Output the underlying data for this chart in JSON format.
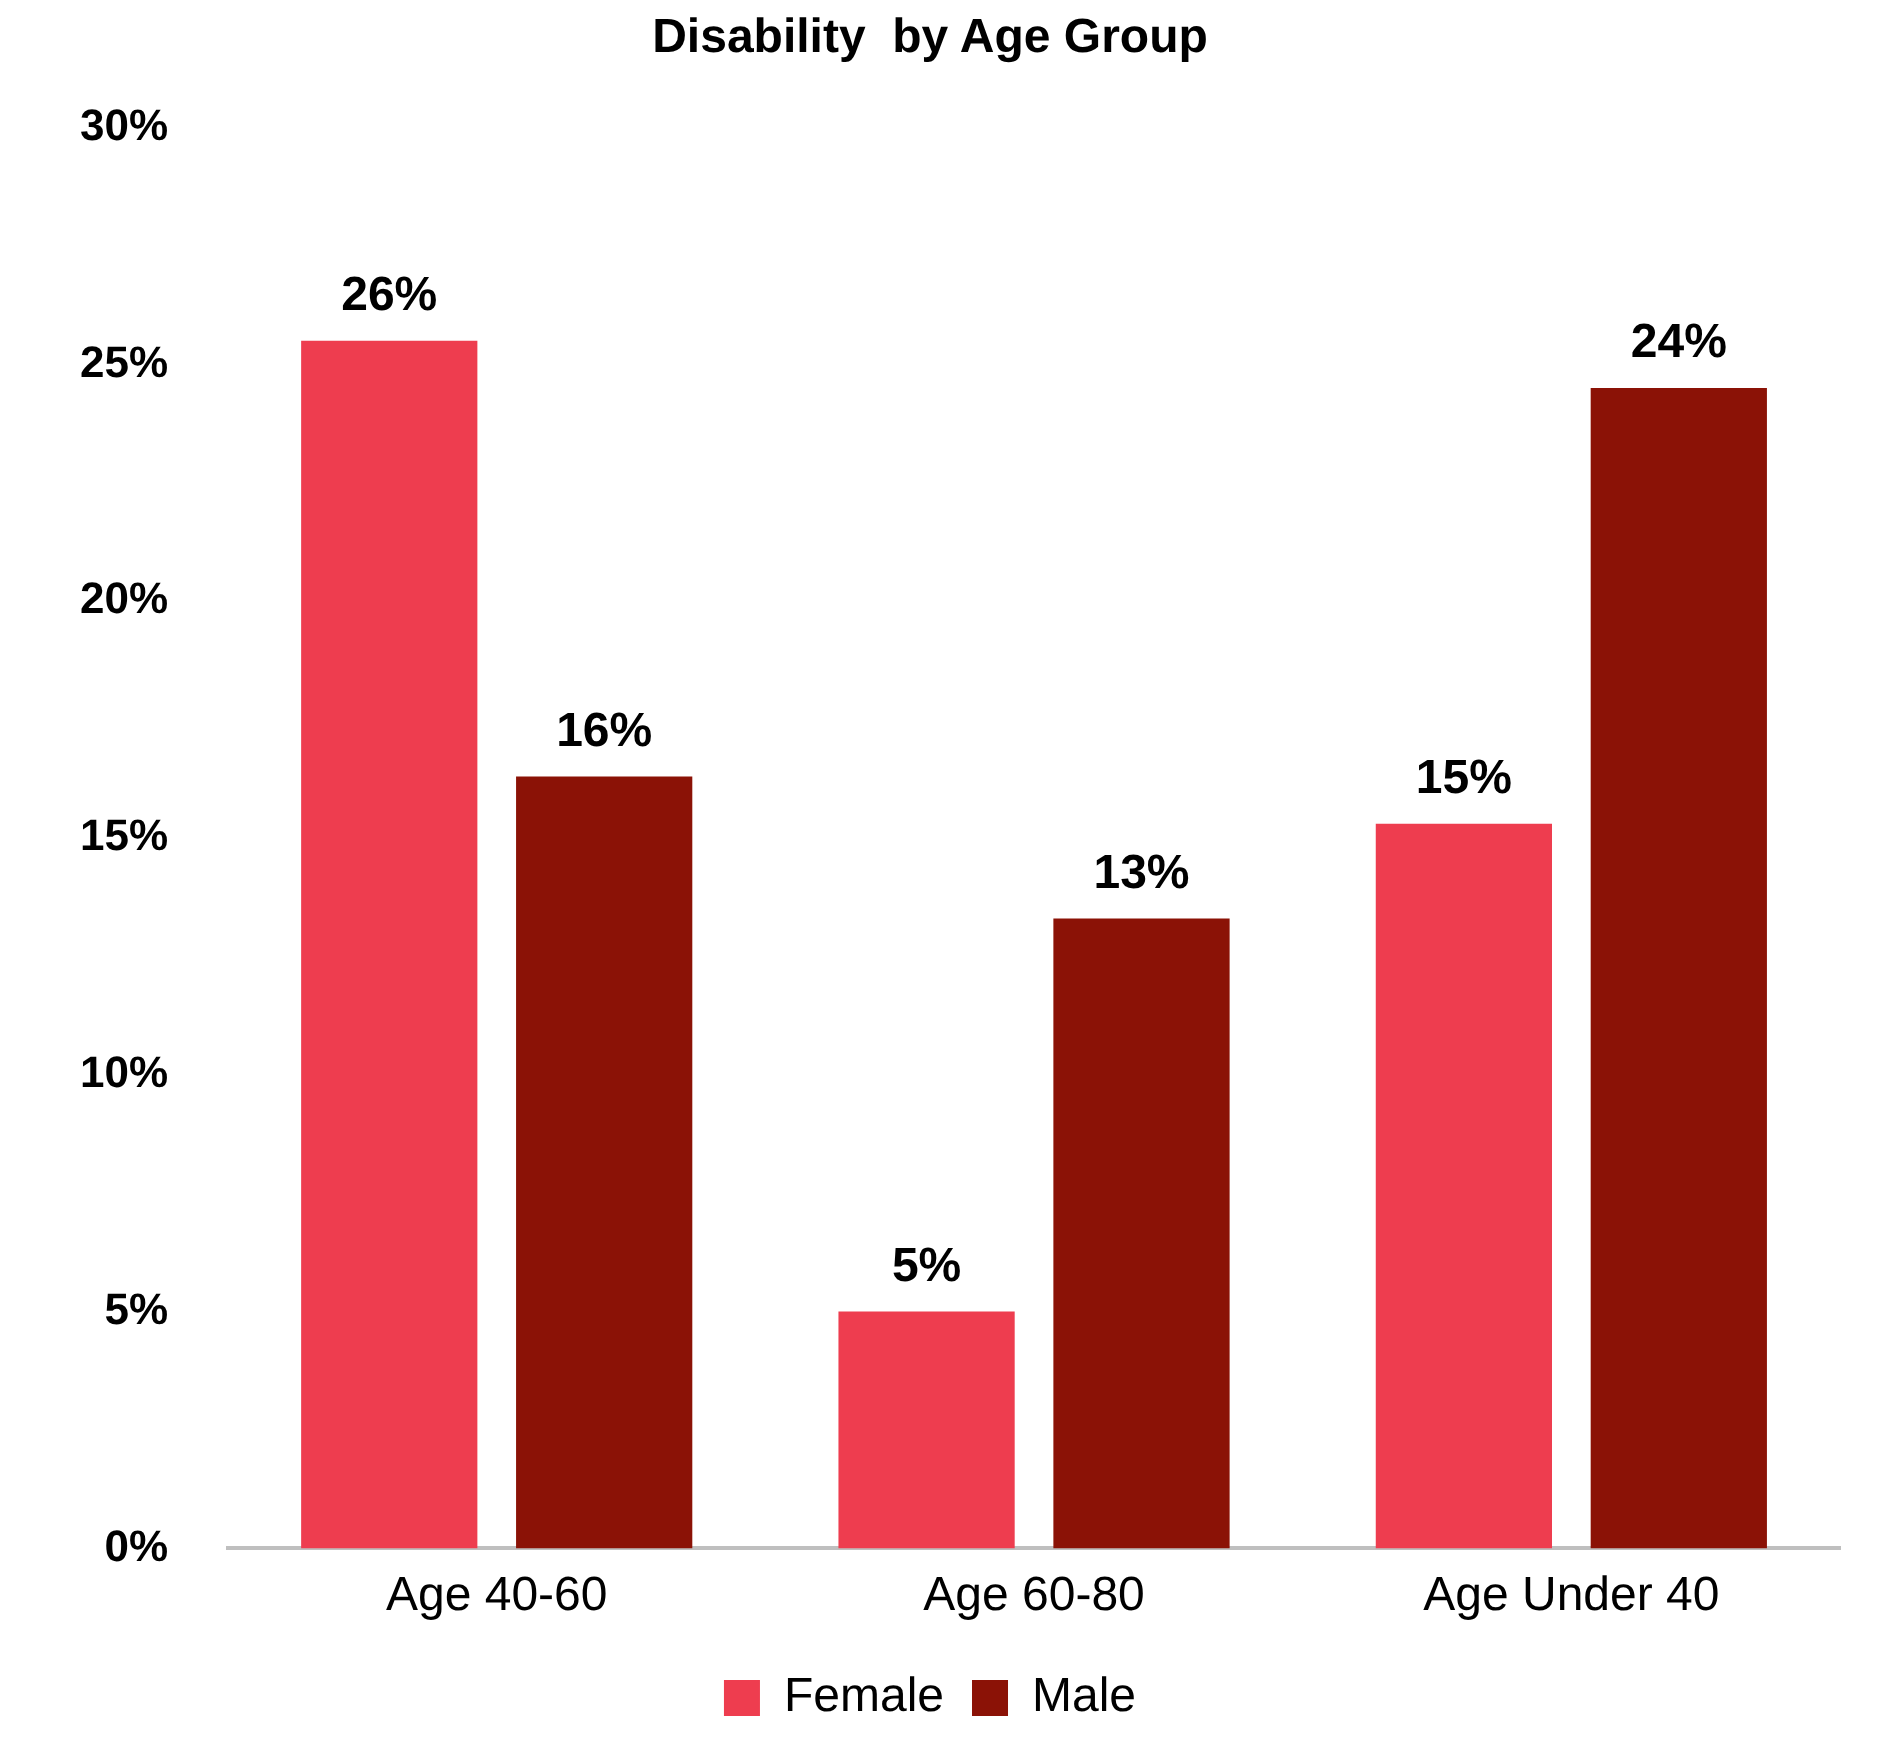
{
  "chart_data": {
    "type": "bar",
    "title": "Disability  by Age Group",
    "categories": [
      "Age 40-60",
      "Age 60-80",
      "Age Under 40"
    ],
    "series": [
      {
        "name": "Female",
        "color": "#ee3d4f",
        "values": [
          25.5,
          5.0,
          15.3
        ],
        "value_labels": [
          "26%",
          "5%",
          "15%"
        ]
      },
      {
        "name": "Male",
        "color": "#8b1206",
        "values": [
          16.3,
          13.3,
          24.5
        ],
        "value_labels": [
          "16%",
          "13%",
          "24%"
        ]
      }
    ],
    "ylim": [
      0,
      30
    ],
    "yticks": [
      {
        "value": 0,
        "label": "0%"
      },
      {
        "value": 5,
        "label": "5%"
      },
      {
        "value": 10,
        "label": "10%"
      },
      {
        "value": 15,
        "label": "15%"
      },
      {
        "value": 20,
        "label": "20%"
      },
      {
        "value": 25,
        "label": "25%"
      },
      {
        "value": 30,
        "label": "30%"
      }
    ],
    "grid": false,
    "legend": "bottom"
  }
}
